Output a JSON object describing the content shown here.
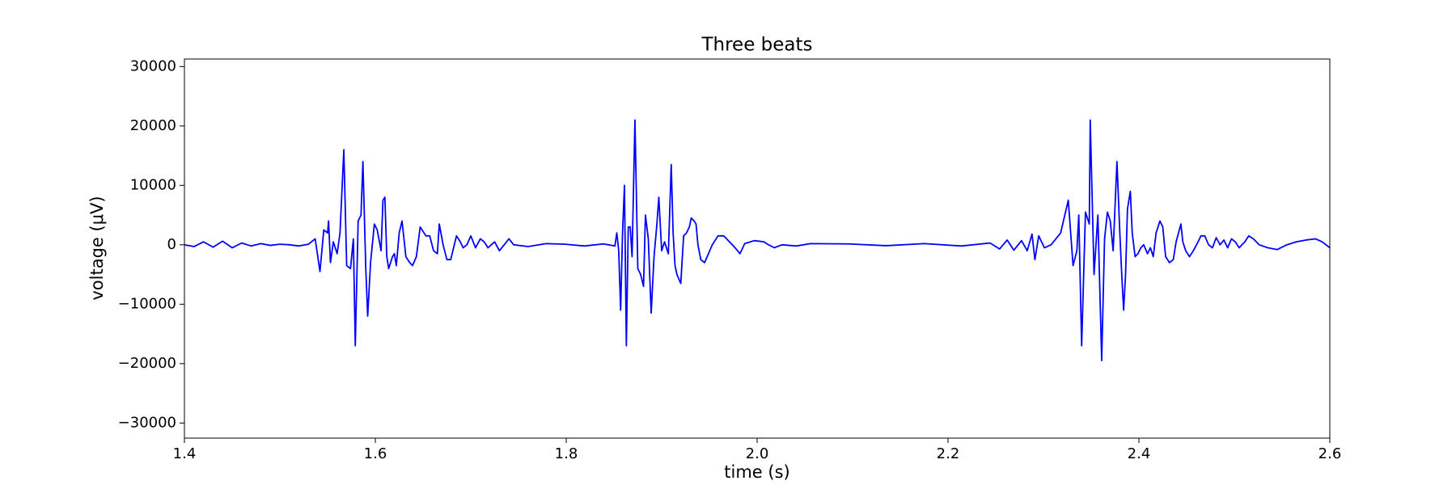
{
  "chart_data": {
    "type": "line",
    "title": "Three beats",
    "x_label": "time (s)",
    "y_label": "voltage (μV)",
    "color": "#0000ff",
    "x": [
      1.4,
      1.41,
      1.42,
      1.43,
      1.44,
      1.45,
      1.46,
      1.47,
      1.48,
      1.49,
      1.5,
      1.51,
      1.52,
      1.53,
      1.537,
      1.542,
      1.546,
      1.55,
      1.551,
      1.553,
      1.556,
      1.56,
      1.563,
      1.567,
      1.57,
      1.574,
      1.577,
      1.579,
      1.582,
      1.585,
      1.587,
      1.59,
      1.592,
      1.595,
      1.599,
      1.602,
      1.606,
      1.608,
      1.61,
      1.612,
      1.614,
      1.618,
      1.62,
      1.622,
      1.625,
      1.628,
      1.632,
      1.636,
      1.639,
      1.643,
      1.647,
      1.653,
      1.657,
      1.661,
      1.665,
      1.667,
      1.671,
      1.675,
      1.679,
      1.685,
      1.689,
      1.692,
      1.696,
      1.7,
      1.705,
      1.71,
      1.714,
      1.718,
      1.725,
      1.73,
      1.74,
      1.745,
      1.76,
      1.779,
      1.799,
      1.819,
      1.839,
      1.851,
      1.853,
      1.855,
      1.857,
      1.859,
      1.861,
      1.863,
      1.865,
      1.867,
      1.869,
      1.872,
      1.875,
      1.878,
      1.881,
      1.883,
      1.886,
      1.889,
      1.892,
      1.895,
      1.897,
      1.9,
      1.903,
      1.907,
      1.91,
      1.912,
      1.914,
      1.916,
      1.92,
      1.923,
      1.926,
      1.929,
      1.931,
      1.934,
      1.936,
      1.938,
      1.941,
      1.945,
      1.949,
      1.953,
      1.959,
      1.965,
      1.971,
      1.977,
      1.982,
      1.987,
      1.997,
      2.007,
      2.012,
      2.018,
      2.026,
      2.041,
      2.056,
      2.096,
      2.135,
      2.175,
      2.214,
      2.244,
      2.254,
      2.262,
      2.269,
      2.277,
      2.283,
      2.288,
      2.291,
      2.295,
      2.301,
      2.308,
      2.318,
      2.326,
      2.331,
      2.335,
      2.337,
      2.34,
      2.344,
      2.348,
      2.349,
      2.353,
      2.357,
      2.361,
      2.364,
      2.367,
      2.37,
      2.373,
      2.377,
      2.38,
      2.382,
      2.384,
      2.386,
      2.388,
      2.391,
      2.393,
      2.396,
      2.399,
      2.402,
      2.405,
      2.409,
      2.412,
      2.415,
      2.418,
      2.422,
      2.425,
      2.428,
      2.432,
      2.436,
      2.439,
      2.444,
      2.446,
      2.449,
      2.453,
      2.457,
      2.462,
      2.465,
      2.469,
      2.473,
      2.477,
      2.481,
      2.485,
      2.489,
      2.493,
      2.497,
      2.501,
      2.505,
      2.511,
      2.515,
      2.52,
      2.526,
      2.535,
      2.545,
      2.555,
      2.565,
      2.575,
      2.585,
      2.592,
      2.6
    ],
    "values": [
      0,
      -300,
      500,
      -400,
      600,
      -500,
      300,
      -200,
      200,
      -100,
      100,
      0,
      -200,
      100,
      1000,
      -4500,
      2500,
      2000,
      4000,
      -3000,
      500,
      -1500,
      2000,
      16000,
      -3500,
      -4000,
      1000,
      -17000,
      4000,
      5000,
      14000,
      -4000,
      -12000,
      -3000,
      3500,
      2500,
      -1000,
      7500,
      8000,
      -2000,
      -4000,
      -2000,
      -1500,
      -3500,
      2000,
      4000,
      -2000,
      -3000,
      -3500,
      -2000,
      3000,
      1500,
      1500,
      -1000,
      -1500,
      3500,
      0,
      -2500,
      -2500,
      1500,
      500,
      -500,
      0,
      1500,
      -500,
      1000,
      500,
      -500,
      500,
      -1000,
      1000,
      0,
      -300,
      200,
      100,
      -200,
      150,
      -200,
      2000,
      -1000,
      -11000,
      2000,
      10000,
      -17000,
      3000,
      3000,
      -2000,
      21000,
      -4000,
      -5000,
      -7000,
      5000,
      1000,
      -11500,
      -2000,
      3500,
      8000,
      -1000,
      500,
      -1500,
      13500,
      2000,
      -3500,
      -5000,
      -6500,
      1500,
      2000,
      3000,
      4500,
      4000,
      3500,
      0,
      -2500,
      -3000,
      -1500,
      0,
      1500,
      1500,
      500,
      -500,
      -1500,
      200,
      700,
      500,
      0,
      -500,
      0,
      -200,
      200,
      150,
      -150,
      200,
      -200,
      300,
      -700,
      800,
      -900,
      700,
      -1000,
      1800,
      -2500,
      1500,
      -500,
      0,
      2000,
      7500,
      -3500,
      -1000,
      5000,
      -17000,
      5500,
      3500,
      21000,
      -5000,
      5000,
      -19500,
      1000,
      5500,
      4000,
      -1000,
      14000,
      2000,
      -5000,
      -11000,
      -5000,
      6000,
      9000,
      2000,
      -2000,
      -1500,
      -500,
      0,
      -1500,
      -500,
      -2000,
      2000,
      4000,
      3000,
      -2000,
      -3000,
      -2500,
      500,
      3500,
      500,
      -1000,
      -2000,
      -1000,
      500,
      1500,
      1500,
      0,
      -500,
      1200,
      0,
      800,
      -500,
      1000,
      500,
      -500,
      500,
      1500,
      1000,
      0,
      -500,
      -800,
      0,
      500,
      800,
      1000,
      500,
      -500
    ],
    "xlim": [
      1.4,
      2.6
    ],
    "ylim": [
      -32540,
      31270
    ],
    "xticks": [
      1.4,
      1.6,
      1.8,
      {
        "value": 2,
        "label": "2.0"
      },
      2.2,
      2.4,
      2.6
    ],
    "yticks": [
      {
        "value": -30000,
        "label": "−30000"
      },
      {
        "value": -20000,
        "label": "−20000"
      },
      {
        "value": -10000,
        "label": "−10000"
      },
      0,
      10000,
      20000,
      30000
    ]
  }
}
